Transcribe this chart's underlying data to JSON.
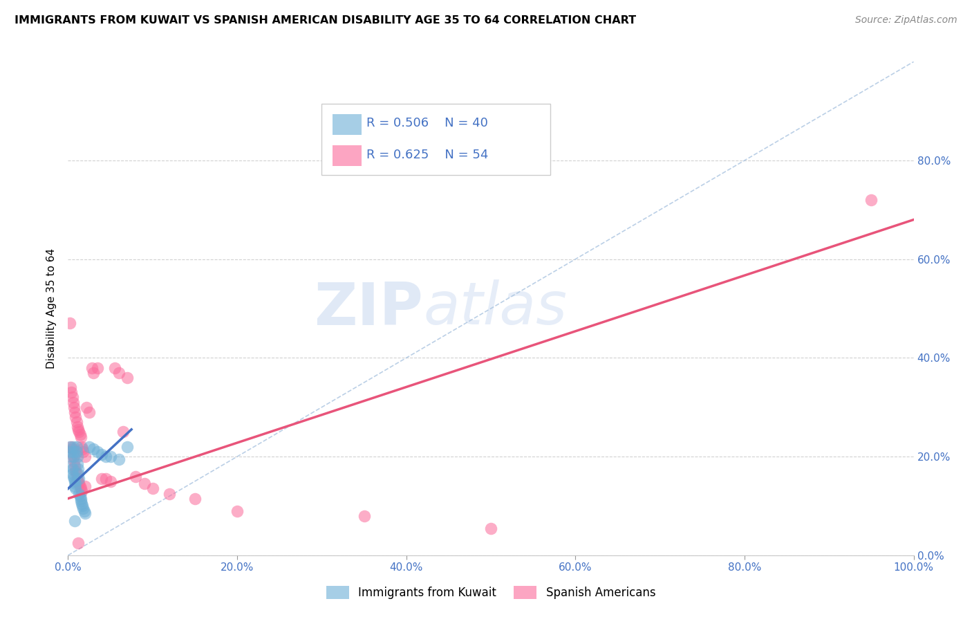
{
  "title": "IMMIGRANTS FROM KUWAIT VS SPANISH AMERICAN DISABILITY AGE 35 TO 64 CORRELATION CHART",
  "source": "Source: ZipAtlas.com",
  "ylabel": "Disability Age 35 to 64",
  "xlim": [
    0,
    1.0
  ],
  "ylim": [
    0,
    1.0
  ],
  "xticks": [
    0.0,
    0.2,
    0.4,
    0.6,
    0.8,
    1.0
  ],
  "yticks": [
    0.0,
    0.2,
    0.4,
    0.6,
    0.8
  ],
  "xticklabels": [
    "0.0%",
    "20.0%",
    "40.0%",
    "60.0%",
    "80.0%",
    "100.0%"
  ],
  "yticklabels": [
    "0.0%",
    "20.0%",
    "40.0%",
    "60.0%",
    "80.0%"
  ],
  "color_kuwait": "#6baed6",
  "color_spanish": "#fb6a9a",
  "legend_r_kuwait": "R = 0.506",
  "legend_n_kuwait": "N = 40",
  "legend_r_spanish": "R = 0.625",
  "legend_n_spanish": "N = 54",
  "watermark_zip": "ZIP",
  "watermark_atlas": "atlas",
  "kuwait_points": [
    [
      0.002,
      0.22
    ],
    [
      0.003,
      0.21
    ],
    [
      0.004,
      0.2
    ],
    [
      0.004,
      0.18
    ],
    [
      0.005,
      0.175
    ],
    [
      0.005,
      0.165
    ],
    [
      0.006,
      0.16
    ],
    [
      0.006,
      0.22
    ],
    [
      0.007,
      0.21
    ],
    [
      0.007,
      0.2
    ],
    [
      0.007,
      0.155
    ],
    [
      0.008,
      0.15
    ],
    [
      0.008,
      0.14
    ],
    [
      0.009,
      0.135
    ],
    [
      0.009,
      0.145
    ],
    [
      0.01,
      0.22
    ],
    [
      0.01,
      0.21
    ],
    [
      0.011,
      0.2
    ],
    [
      0.011,
      0.185
    ],
    [
      0.012,
      0.175
    ],
    [
      0.012,
      0.165
    ],
    [
      0.013,
      0.155
    ],
    [
      0.013,
      0.125
    ],
    [
      0.014,
      0.12
    ],
    [
      0.015,
      0.115
    ],
    [
      0.015,
      0.11
    ],
    [
      0.016,
      0.105
    ],
    [
      0.017,
      0.1
    ],
    [
      0.018,
      0.095
    ],
    [
      0.019,
      0.09
    ],
    [
      0.02,
      0.085
    ],
    [
      0.025,
      0.22
    ],
    [
      0.03,
      0.215
    ],
    [
      0.035,
      0.21
    ],
    [
      0.04,
      0.205
    ],
    [
      0.045,
      0.2
    ],
    [
      0.05,
      0.2
    ],
    [
      0.06,
      0.195
    ],
    [
      0.07,
      0.22
    ],
    [
      0.008,
      0.07
    ]
  ],
  "spanish_points": [
    [
      0.002,
      0.47
    ],
    [
      0.003,
      0.34
    ],
    [
      0.004,
      0.33
    ],
    [
      0.004,
      0.22
    ],
    [
      0.005,
      0.32
    ],
    [
      0.005,
      0.215
    ],
    [
      0.006,
      0.31
    ],
    [
      0.006,
      0.2
    ],
    [
      0.007,
      0.3
    ],
    [
      0.007,
      0.19
    ],
    [
      0.008,
      0.29
    ],
    [
      0.008,
      0.18
    ],
    [
      0.009,
      0.28
    ],
    [
      0.009,
      0.17
    ],
    [
      0.01,
      0.27
    ],
    [
      0.01,
      0.165
    ],
    [
      0.011,
      0.26
    ],
    [
      0.011,
      0.155
    ],
    [
      0.012,
      0.255
    ],
    [
      0.012,
      0.15
    ],
    [
      0.013,
      0.25
    ],
    [
      0.013,
      0.145
    ],
    [
      0.014,
      0.245
    ],
    [
      0.014,
      0.14
    ],
    [
      0.015,
      0.24
    ],
    [
      0.015,
      0.135
    ],
    [
      0.016,
      0.22
    ],
    [
      0.016,
      0.13
    ],
    [
      0.017,
      0.215
    ],
    [
      0.018,
      0.21
    ],
    [
      0.02,
      0.2
    ],
    [
      0.02,
      0.14
    ],
    [
      0.022,
      0.3
    ],
    [
      0.025,
      0.29
    ],
    [
      0.028,
      0.38
    ],
    [
      0.03,
      0.37
    ],
    [
      0.035,
      0.38
    ],
    [
      0.04,
      0.155
    ],
    [
      0.045,
      0.155
    ],
    [
      0.05,
      0.15
    ],
    [
      0.055,
      0.38
    ],
    [
      0.06,
      0.37
    ],
    [
      0.07,
      0.36
    ],
    [
      0.08,
      0.16
    ],
    [
      0.09,
      0.145
    ],
    [
      0.1,
      0.135
    ],
    [
      0.12,
      0.125
    ],
    [
      0.15,
      0.115
    ],
    [
      0.2,
      0.09
    ],
    [
      0.35,
      0.08
    ],
    [
      0.5,
      0.055
    ],
    [
      0.95,
      0.72
    ],
    [
      0.012,
      0.025
    ],
    [
      0.065,
      0.25
    ]
  ],
  "kuwait_line_x": [
    0.0,
    0.075
  ],
  "kuwait_line_y": [
    0.135,
    0.255
  ],
  "spanish_line_x": [
    0.0,
    1.0
  ],
  "spanish_line_y": [
    0.115,
    0.68
  ],
  "dashed_line_x": [
    0.0,
    1.0
  ],
  "dashed_line_y": [
    0.0,
    1.0
  ]
}
